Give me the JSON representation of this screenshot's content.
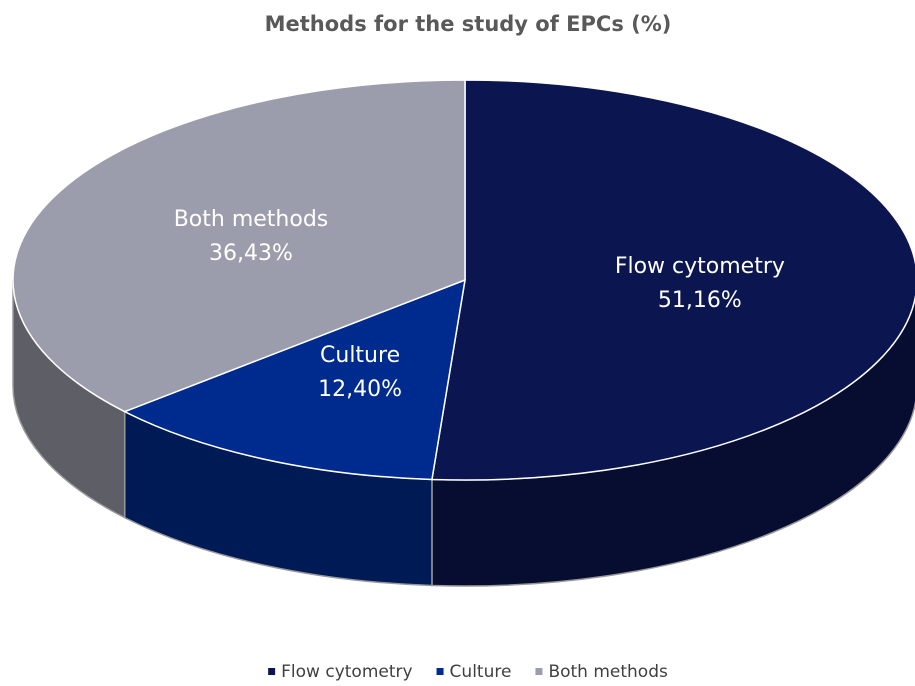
{
  "chart_data": {
    "type": "pie3d",
    "title": "Methods for the study of EPCs (%)",
    "categories": [
      "Flow cytometry",
      "Culture",
      "Both methods"
    ],
    "values": [
      51.16,
      12.4,
      36.43
    ],
    "value_labels": [
      "51,16%",
      "12,40%",
      "36,43%"
    ],
    "colors": [
      "#0b1650",
      "#002b8e",
      "#9c9dac"
    ],
    "legend": "bottom"
  }
}
